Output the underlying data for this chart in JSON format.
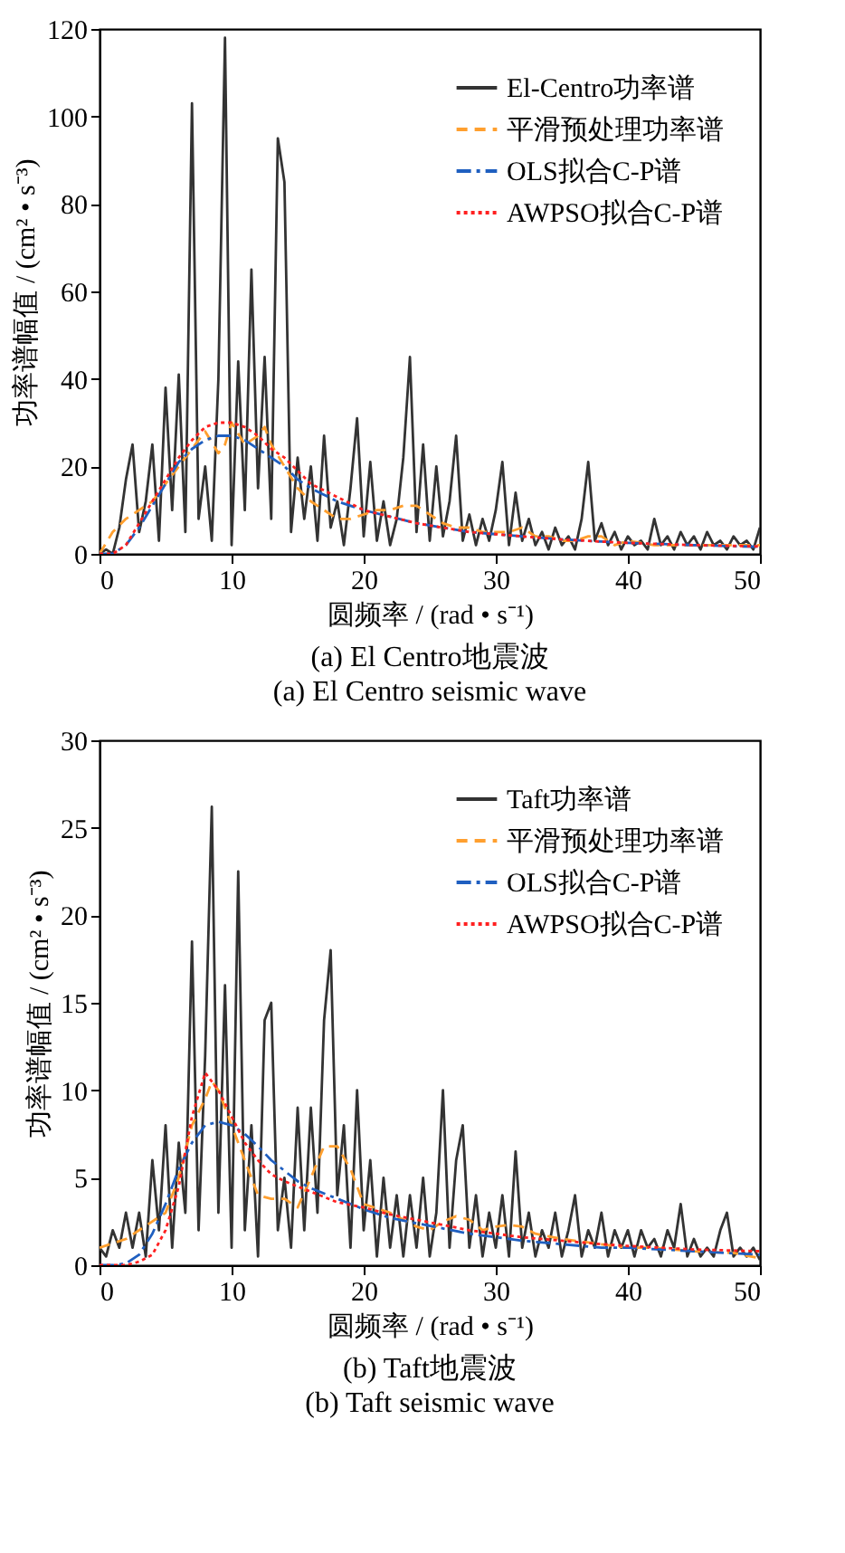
{
  "chart_data": [
    {
      "type": "line",
      "title": "(a) El Centro地震波",
      "subtitle": "(a) El Centro seismic wave",
      "xlabel": "圆频率 / (rad • s⁻¹)",
      "ylabel": "功率谱幅值 / (cm² • s⁻³)",
      "xlim": [
        0,
        50
      ],
      "ylim": [
        0,
        120
      ],
      "xticks": [
        0,
        10,
        20,
        30,
        40,
        50
      ],
      "yticks": [
        0,
        20,
        40,
        60,
        80,
        100,
        120
      ],
      "grid": false,
      "legend": "top right",
      "marker": "none",
      "series": [
        {
          "name": "El-Centro功率谱",
          "color": "#333333",
          "line_style": "solid",
          "x": [
            0,
            0.5,
            1,
            1.5,
            2,
            2.5,
            3,
            3.5,
            4,
            4.5,
            5,
            5.5,
            6,
            6.5,
            7,
            7.5,
            8,
            8.5,
            9,
            9.5,
            10,
            10.5,
            11,
            11.5,
            12,
            12.5,
            13,
            13.5,
            14,
            14.5,
            15,
            15.5,
            16,
            16.5,
            17,
            17.5,
            18,
            18.5,
            19,
            19.5,
            20,
            20.5,
            21,
            21.5,
            22,
            22.5,
            23,
            23.5,
            24,
            24.5,
            25,
            25.5,
            26,
            26.5,
            27,
            27.5,
            28,
            28.5,
            29,
            29.5,
            30,
            30.5,
            31,
            31.5,
            32,
            32.5,
            33,
            33.5,
            34,
            34.5,
            35,
            35.5,
            36,
            36.5,
            37,
            37.5,
            38,
            38.5,
            39,
            39.5,
            40,
            40.5,
            41,
            41.5,
            42,
            42.5,
            43,
            43.5,
            44,
            44.5,
            45,
            45.5,
            46,
            46.5,
            47,
            47.5,
            48,
            48.5,
            49,
            49.5,
            50
          ],
          "values": [
            0,
            1,
            0,
            6,
            17,
            25,
            5,
            12,
            25,
            3,
            38,
            10,
            41,
            5,
            103,
            8,
            20,
            3,
            40,
            118,
            2,
            44,
            10,
            65,
            15,
            45,
            8,
            95,
            85,
            5,
            22,
            8,
            20,
            3,
            27,
            6,
            12,
            2,
            15,
            31,
            4,
            21,
            3,
            12,
            2,
            8,
            22,
            45,
            5,
            25,
            3,
            20,
            4,
            12,
            27,
            3,
            9,
            2,
            8,
            3,
            10,
            21,
            2,
            14,
            3,
            8,
            2,
            5,
            1,
            6,
            2,
            4,
            1,
            8,
            21,
            3,
            7,
            2,
            5,
            1,
            4,
            2,
            3,
            1,
            8,
            2,
            4,
            1,
            5,
            2,
            4,
            1,
            5,
            2,
            3,
            1,
            4,
            2,
            3,
            1,
            6
          ]
        },
        {
          "name": "平滑预处理功率谱",
          "color": "#ff9f2e",
          "line_style": "dashed",
          "x": [
            0,
            1,
            2,
            3,
            4,
            5,
            6,
            7,
            8,
            9,
            9.5,
            10,
            11,
            12,
            12.5,
            13,
            14,
            15,
            16,
            17,
            18,
            19,
            20,
            21,
            22,
            23,
            24,
            25,
            26,
            27,
            28,
            29,
            30,
            31,
            32,
            33,
            34,
            35,
            36,
            37,
            38,
            39,
            40,
            42,
            44,
            46,
            48,
            50
          ],
          "values": [
            0,
            5,
            8,
            10,
            12,
            16,
            20,
            24,
            28,
            23,
            25,
            30,
            25,
            27,
            29,
            25,
            20,
            15,
            12,
            10,
            8,
            8,
            9,
            10,
            10,
            11,
            11,
            9,
            7,
            6,
            6,
            5,
            5,
            5,
            6,
            4,
            4,
            3,
            3,
            4,
            4,
            2,
            3,
            2,
            2,
            2,
            2,
            2
          ]
        },
        {
          "name": "OLS拟合C-P谱",
          "color": "#1f5fc0",
          "line_style": "dashdot",
          "x": [
            0,
            1,
            2,
            3,
            4,
            5,
            6,
            7,
            8,
            9,
            10,
            11,
            12,
            13,
            14,
            15,
            16,
            18,
            20,
            22,
            24,
            26,
            28,
            30,
            32,
            35,
            38,
            40,
            45,
            50
          ],
          "values": [
            0,
            0,
            2,
            6,
            11,
            16,
            21,
            24,
            26,
            27,
            27,
            26,
            24,
            22,
            20,
            17,
            15,
            12,
            10,
            8.5,
            7,
            6,
            5,
            4.5,
            4,
            3.3,
            2.8,
            2.5,
            2,
            1.6
          ]
        },
        {
          "name": "AWPSO拟合C-P谱",
          "color": "#ff2020",
          "line_style": "dotted",
          "x": [
            0,
            1,
            2,
            3,
            4,
            5,
            6,
            7,
            8,
            9,
            10,
            11,
            12,
            13,
            14,
            15,
            16,
            18,
            20,
            22,
            24,
            26,
            28,
            30,
            32,
            35,
            38,
            40,
            45,
            50
          ],
          "values": [
            0,
            0,
            2,
            7,
            12,
            17,
            22,
            26,
            29,
            30,
            30,
            29,
            27,
            24,
            22,
            19,
            16,
            13,
            10,
            8.5,
            7,
            6,
            5,
            4.5,
            4,
            3.3,
            2.8,
            2.5,
            2,
            1.7
          ]
        }
      ]
    },
    {
      "type": "line",
      "title": "(b) Taft地震波",
      "subtitle": "(b) Taft seismic wave",
      "xlabel": "圆频率 / (rad • s⁻¹)",
      "ylabel": "功率谱幅值 / (cm² • s⁻³)",
      "xlim": [
        0,
        50
      ],
      "ylim": [
        0,
        30
      ],
      "xticks": [
        0,
        10,
        20,
        30,
        40,
        50
      ],
      "yticks": [
        0,
        5,
        10,
        15,
        20,
        25,
        30
      ],
      "grid": false,
      "legend": "top right",
      "marker": "none",
      "series": [
        {
          "name": "Taft功率谱",
          "color": "#333333",
          "line_style": "solid",
          "x": [
            0,
            0.5,
            1,
            1.5,
            2,
            2.5,
            3,
            3.5,
            4,
            4.5,
            5,
            5.5,
            6,
            6.5,
            7,
            7.5,
            8,
            8.5,
            9,
            9.5,
            10,
            10.5,
            11,
            11.5,
            12,
            12.5,
            13,
            13.5,
            14,
            14.5,
            15,
            15.5,
            16,
            16.5,
            17,
            17.5,
            18,
            18.5,
            19,
            19.5,
            20,
            20.5,
            21,
            21.5,
            22,
            22.5,
            23,
            23.5,
            24,
            24.5,
            25,
            25.5,
            26,
            26.5,
            27,
            27.5,
            28,
            28.5,
            29,
            29.5,
            30,
            30.5,
            31,
            31.5,
            32,
            32.5,
            33,
            33.5,
            34,
            34.5,
            35,
            35.5,
            36,
            36.5,
            37,
            37.5,
            38,
            38.5,
            39,
            39.5,
            40,
            40.5,
            41,
            41.5,
            42,
            42.5,
            43,
            43.5,
            44,
            44.5,
            45,
            45.5,
            46,
            46.5,
            47,
            47.5,
            48,
            48.5,
            49,
            49.5,
            50
          ],
          "values": [
            1,
            0.5,
            2,
            1,
            3,
            1,
            3,
            0.5,
            6,
            2,
            8,
            1,
            7,
            3,
            18.5,
            2,
            12,
            26.2,
            3,
            16,
            1,
            22.5,
            2,
            8,
            0.5,
            14,
            15,
            2,
            5,
            1,
            9,
            2,
            9,
            3,
            14,
            18,
            4,
            8,
            1,
            10,
            2,
            6,
            0.5,
            5,
            1,
            4,
            0.5,
            4,
            1,
            5,
            0.5,
            3,
            10,
            1,
            6,
            8,
            1,
            4,
            0.5,
            3,
            1,
            4,
            0.5,
            6.5,
            1,
            3,
            0.5,
            2,
            1,
            3,
            0.5,
            2,
            4,
            0.5,
            2,
            1,
            3,
            0.5,
            2,
            1,
            2,
            0.5,
            2,
            1,
            1.5,
            0.5,
            2,
            1,
            3.5,
            0.5,
            1.5,
            0.5,
            1,
            0.5,
            2,
            3,
            0.5,
            1,
            0.5,
            1,
            0.3
          ]
        },
        {
          "name": "平滑预处理功率谱",
          "color": "#ff9f2e",
          "line_style": "dashed",
          "x": [
            0,
            2,
            4,
            5,
            6,
            7,
            8,
            8.5,
            9,
            10,
            11,
            12,
            13,
            14,
            15,
            16,
            17,
            18,
            19,
            20,
            22,
            24,
            25,
            26,
            27,
            28,
            29,
            30,
            31,
            32,
            33,
            35,
            38,
            40,
            42,
            45,
            48,
            50
          ],
          "values": [
            1,
            1.5,
            2.5,
            3,
            5,
            8,
            9.5,
            10.5,
            10,
            8,
            6,
            4,
            3.8,
            3.8,
            3.3,
            5,
            6.8,
            6.8,
            5.5,
            3.5,
            3,
            2.2,
            2,
            2.5,
            2.8,
            2.6,
            2,
            2.2,
            2.3,
            2.2,
            1.8,
            1.5,
            1.2,
            1,
            1,
            0.8,
            0.7,
            0.4
          ]
        },
        {
          "name": "OLS拟合C-P谱",
          "color": "#1f5fc0",
          "line_style": "dashdot",
          "x": [
            0,
            1,
            2,
            3,
            4,
            5,
            6,
            7,
            8,
            9,
            10,
            11,
            12,
            13,
            14,
            15,
            16,
            18,
            20,
            22,
            24,
            26,
            28,
            30,
            32,
            35,
            38,
            40,
            45,
            50
          ],
          "values": [
            0,
            0,
            0.1,
            0.6,
            1.8,
            3.5,
            5.5,
            7,
            8,
            8.2,
            8,
            7.5,
            6.8,
            6,
            5.4,
            4.8,
            4.4,
            3.8,
            3.2,
            2.7,
            2.4,
            2.1,
            1.8,
            1.6,
            1.4,
            1.2,
            1,
            1,
            0.8,
            0.6
          ]
        },
        {
          "name": "AWPSO拟合C-P谱",
          "color": "#ff2020",
          "line_style": "dotted",
          "x": [
            0,
            2,
            3,
            4,
            5,
            6,
            7,
            8,
            9,
            10,
            11,
            12,
            13,
            14,
            15,
            16,
            18,
            20,
            22,
            24,
            26,
            28,
            30,
            32,
            35,
            38,
            40,
            45,
            50
          ],
          "values": [
            0,
            0,
            0.2,
            0.6,
            2,
            4.5,
            8.5,
            11,
            10,
            8.5,
            7,
            6,
            5.2,
            4.8,
            4.5,
            4.2,
            3.6,
            3.3,
            2.9,
            2.6,
            2.3,
            2,
            1.8,
            1.6,
            1.4,
            1.2,
            1.1,
            0.9,
            0.8
          ]
        }
      ]
    }
  ]
}
